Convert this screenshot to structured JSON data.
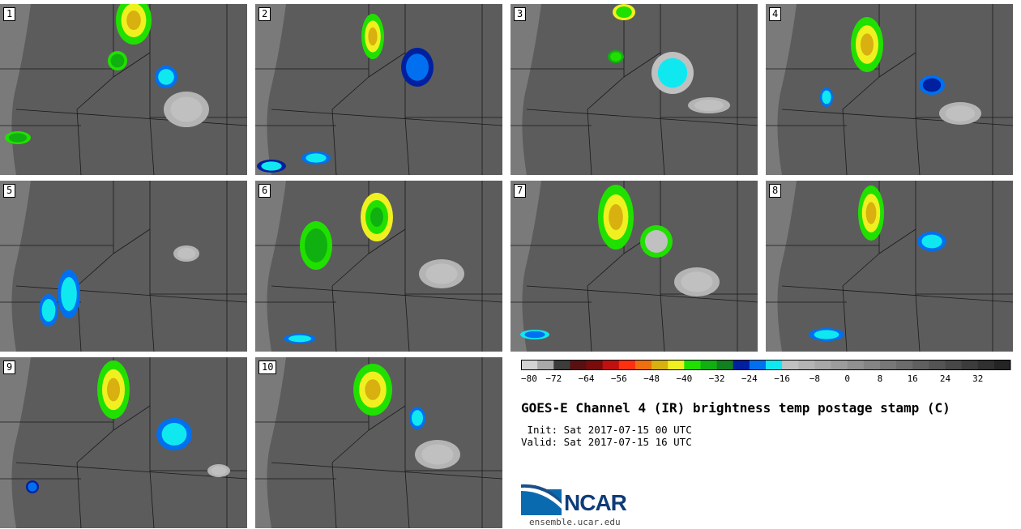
{
  "panels": [
    {
      "label": "1"
    },
    {
      "label": "2"
    },
    {
      "label": "3"
    },
    {
      "label": "4"
    },
    {
      "label": "5"
    },
    {
      "label": "6"
    },
    {
      "label": "7"
    },
    {
      "label": "8"
    },
    {
      "label": "9"
    },
    {
      "label": "10"
    }
  ],
  "colorbar": {
    "min": -80,
    "max": 40,
    "step": 4,
    "tick_labels": [
      "−80",
      "−72",
      "−64",
      "−56",
      "−48",
      "−40",
      "−32",
      "−24",
      "−16",
      "−8",
      "0",
      "8",
      "16",
      "24",
      "32"
    ],
    "colors": [
      "#d3d3d3",
      "#a9a9a9",
      "#3c3c3c",
      "#5a1010",
      "#7a0c0c",
      "#c01010",
      "#ff3010",
      "#f07010",
      "#d8b010",
      "#f0f020",
      "#20e000",
      "#10b010",
      "#108020",
      "#0020a0",
      "#0070f0",
      "#10e8f0",
      "#c0c0c0",
      "#b4b4b4",
      "#a8a8a8",
      "#9c9c9c",
      "#909090",
      "#848484",
      "#787878",
      "#6c6c6c",
      "#606060",
      "#545454",
      "#484848",
      "#3c3c3c",
      "#303030",
      "#242424"
    ]
  },
  "title": "GOES-E Channel 4 (IR) brightness temp postage stamp (C)",
  "init": " Init: Sat 2017-07-15 00 UTC",
  "valid": "Valid: Sat 2017-07-15 16 UTC",
  "logo": {
    "text": "NCAR",
    "url": "ensemble.ucar.edu",
    "color": "#0f3c78"
  }
}
